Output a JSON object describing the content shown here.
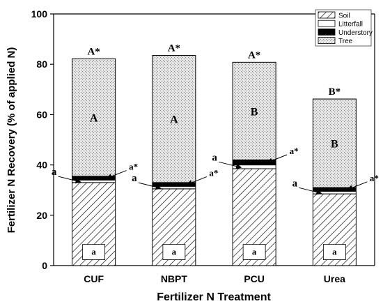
{
  "chart_data": {
    "type": "bar",
    "stacked": true,
    "categories": [
      "CUF",
      "NBPT",
      "PCU",
      "Urea"
    ],
    "xlabel": "Fertilizer N Treatment",
    "ylabel": "Fertilizer N Recovery (% of applied N)",
    "ylim": [
      0,
      100
    ],
    "yticks": [
      "0",
      "20",
      "40",
      "60",
      "80",
      "100"
    ],
    "grid": false,
    "legend_position": "top-right",
    "series": [
      {
        "name": "Soil",
        "pattern": "diagonal-hatch",
        "color": "#000000",
        "values": [
          33.0,
          30.5,
          38.5,
          28.5
        ]
      },
      {
        "name": "Litterfall",
        "pattern": "solid",
        "color": "#ffffff",
        "values": [
          1.0,
          1.0,
          1.5,
          1.0
        ]
      },
      {
        "name": "Understory",
        "pattern": "solid",
        "color": "#000000",
        "values": [
          1.5,
          1.5,
          2.0,
          1.5
        ]
      },
      {
        "name": "Tree",
        "pattern": "stipple",
        "color": "#dcdcdc",
        "values": [
          46.7,
          50.5,
          38.8,
          35.2
        ]
      }
    ],
    "top_labels": [
      "A*",
      "A*",
      "A*",
      "B*"
    ],
    "tree_letters": [
      "A",
      "A",
      "B",
      "B"
    ],
    "soil_letters": [
      "a",
      "a",
      "a",
      "a"
    ],
    "litterfall_letters": [
      "a",
      "a",
      "a",
      "a"
    ],
    "understory_letters": [
      "a*",
      "a*",
      "a*",
      "a*"
    ]
  }
}
